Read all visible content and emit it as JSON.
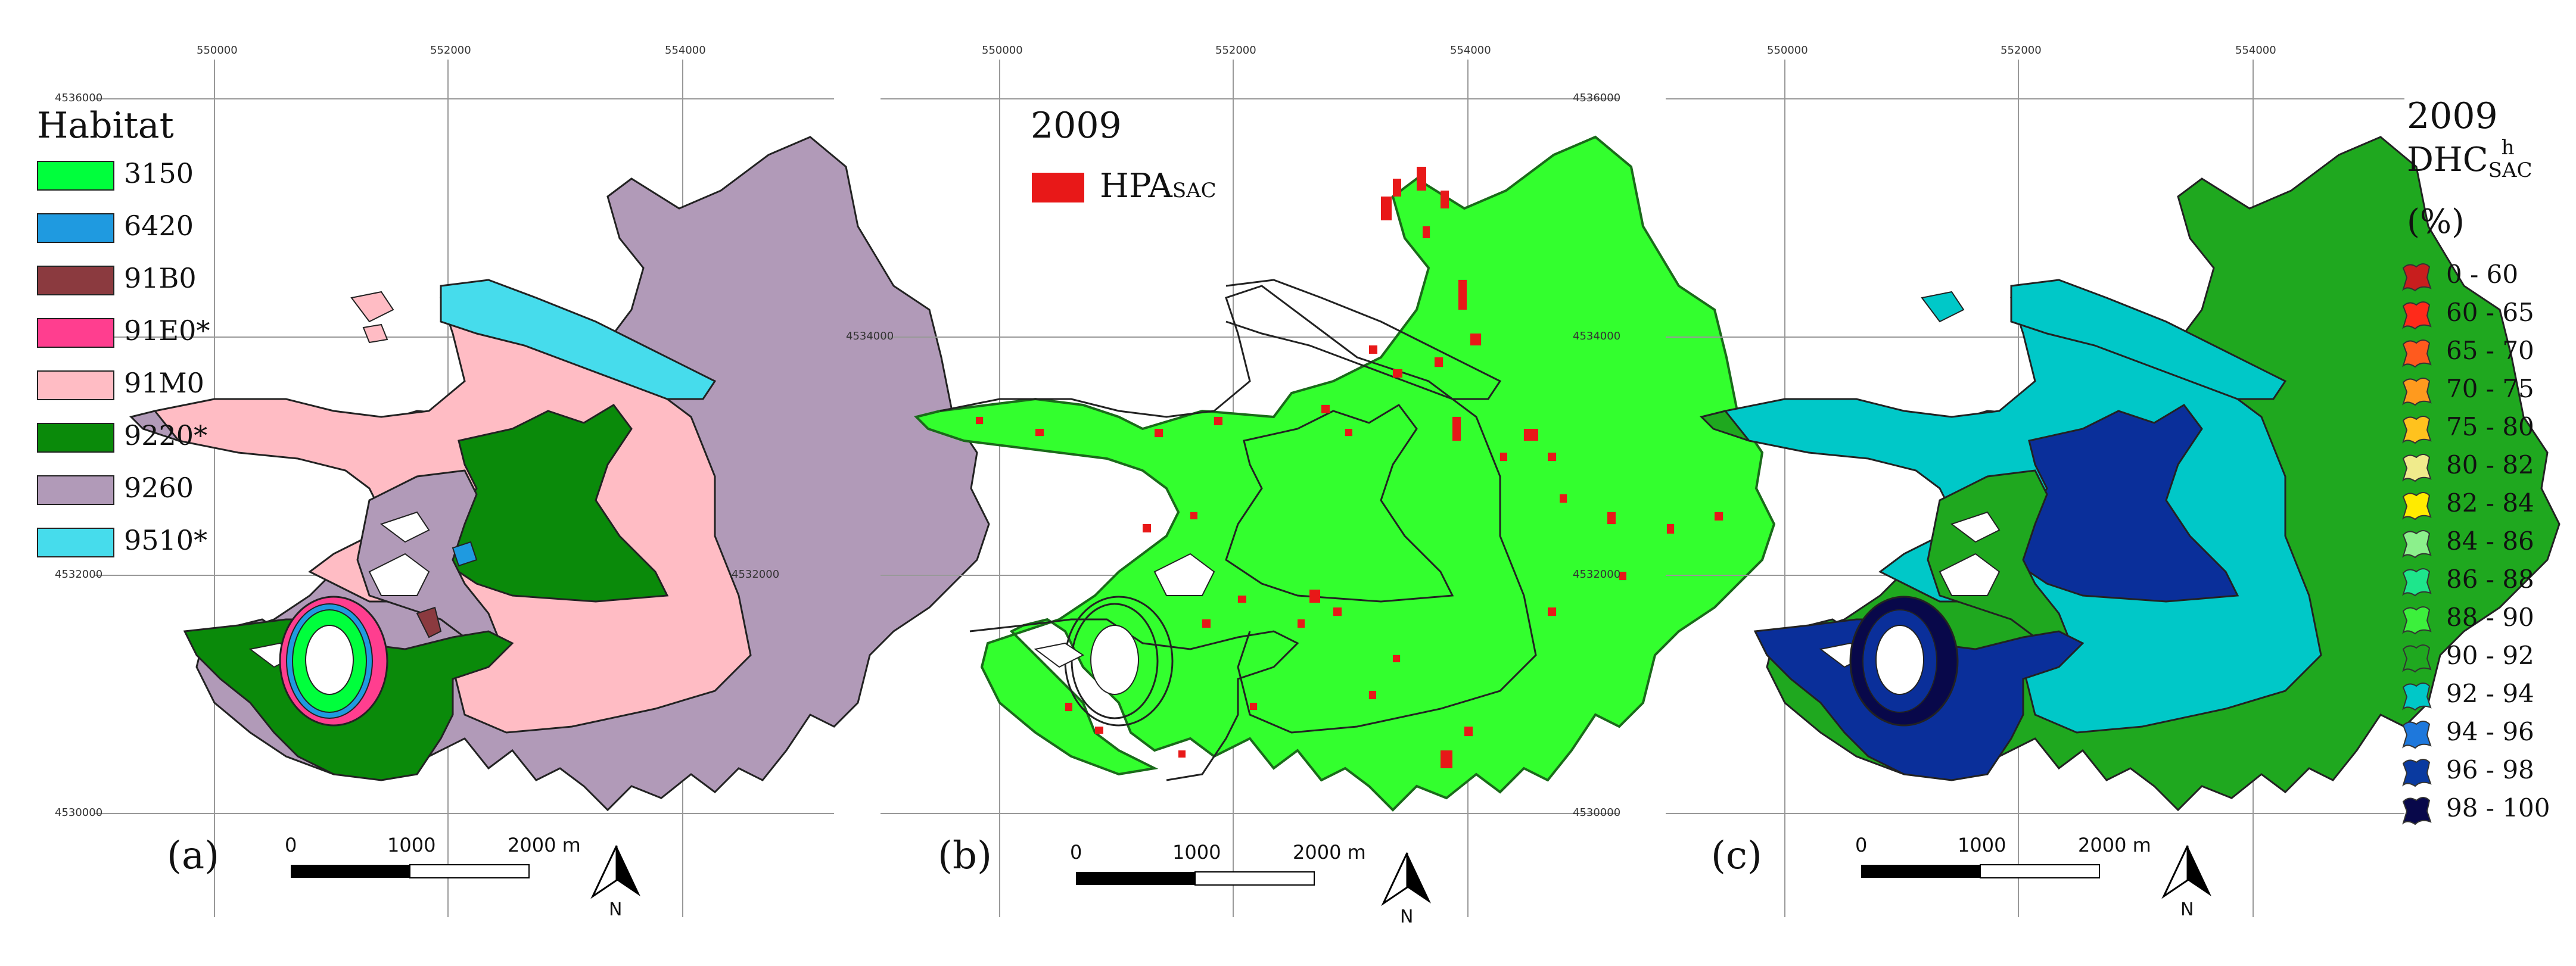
{
  "colors": {
    "h3150": "#00ff3c",
    "h6420": "#1f9ae0",
    "h91B0": "#8b3a3f",
    "h91E0": "#ff3e8f",
    "h91M0": "#ffbcc4",
    "h9220": "#0a8a0a",
    "h9260": "#b19ab8",
    "h9510": "#46dcec",
    "green_b": "#33ff2e",
    "red_hpa": "#e81818",
    "cyan_c": "#00c8c8",
    "green_c": "#1fa81f",
    "navy_c": "#0a2f9a",
    "darknavy_c": "#08084a"
  },
  "coords": {
    "x_ticks": [
      "550000",
      "552000",
      "554000"
    ],
    "y_ticks": [
      "4536000",
      "4534000",
      "4532000",
      "4530000"
    ]
  },
  "panel_a": {
    "legend_title": "Habitat",
    "legend_items": [
      {
        "label": "3150",
        "color": "#00ff3c"
      },
      {
        "label": "6420",
        "color": "#1f9ae0"
      },
      {
        "label": "91B0",
        "color": "#8b3a3f"
      },
      {
        "label": "91E0*",
        "color": "#ff3e8f"
      },
      {
        "label": "91M0",
        "color": "#ffbcc4"
      },
      {
        "label": "9220*",
        "color": "#0a8a0a"
      },
      {
        "label": "9260",
        "color": "#b19ab8"
      },
      {
        "label": "9510*",
        "color": "#46dcec"
      }
    ],
    "letter": "(a)"
  },
  "panel_b": {
    "year": "2009",
    "hpa_main": "HPA",
    "hpa_sub": "SAC",
    "letter": "(b)"
  },
  "panel_c": {
    "year": "2009",
    "dhc_main": "DHC",
    "dhc_sup": "h",
    "dhc_sub": "SAC",
    "unit": "(%)",
    "letter": "(c)",
    "classes": [
      {
        "label": "0 - 60",
        "color": "#c81e1e"
      },
      {
        "label": "60 - 65",
        "color": "#ff2a1a"
      },
      {
        "label": "65 - 70",
        "color": "#ff5a1e"
      },
      {
        "label": "70 - 75",
        "color": "#ff9a1e"
      },
      {
        "label": "75 - 80",
        "color": "#ffc21e"
      },
      {
        "label": "80 - 82",
        "color": "#f0eb8c"
      },
      {
        "label": "82 - 84",
        "color": "#ffeb00"
      },
      {
        "label": "84 - 86",
        "color": "#8cf08c"
      },
      {
        "label": "86 - 88",
        "color": "#1ee68c"
      },
      {
        "label": "88 - 90",
        "color": "#3cf03c"
      },
      {
        "label": "90 - 92",
        "color": "#1fa81f"
      },
      {
        "label": "92 - 94",
        "color": "#00c8c8"
      },
      {
        "label": "94 - 96",
        "color": "#1e78dc"
      },
      {
        "label": "96 - 98",
        "color": "#0a3aa0"
      },
      {
        "label": "98 - 100",
        "color": "#08084a"
      }
    ]
  },
  "scale": {
    "ticks": [
      "0",
      "1000",
      "2000 m"
    ]
  },
  "north_label": "N"
}
